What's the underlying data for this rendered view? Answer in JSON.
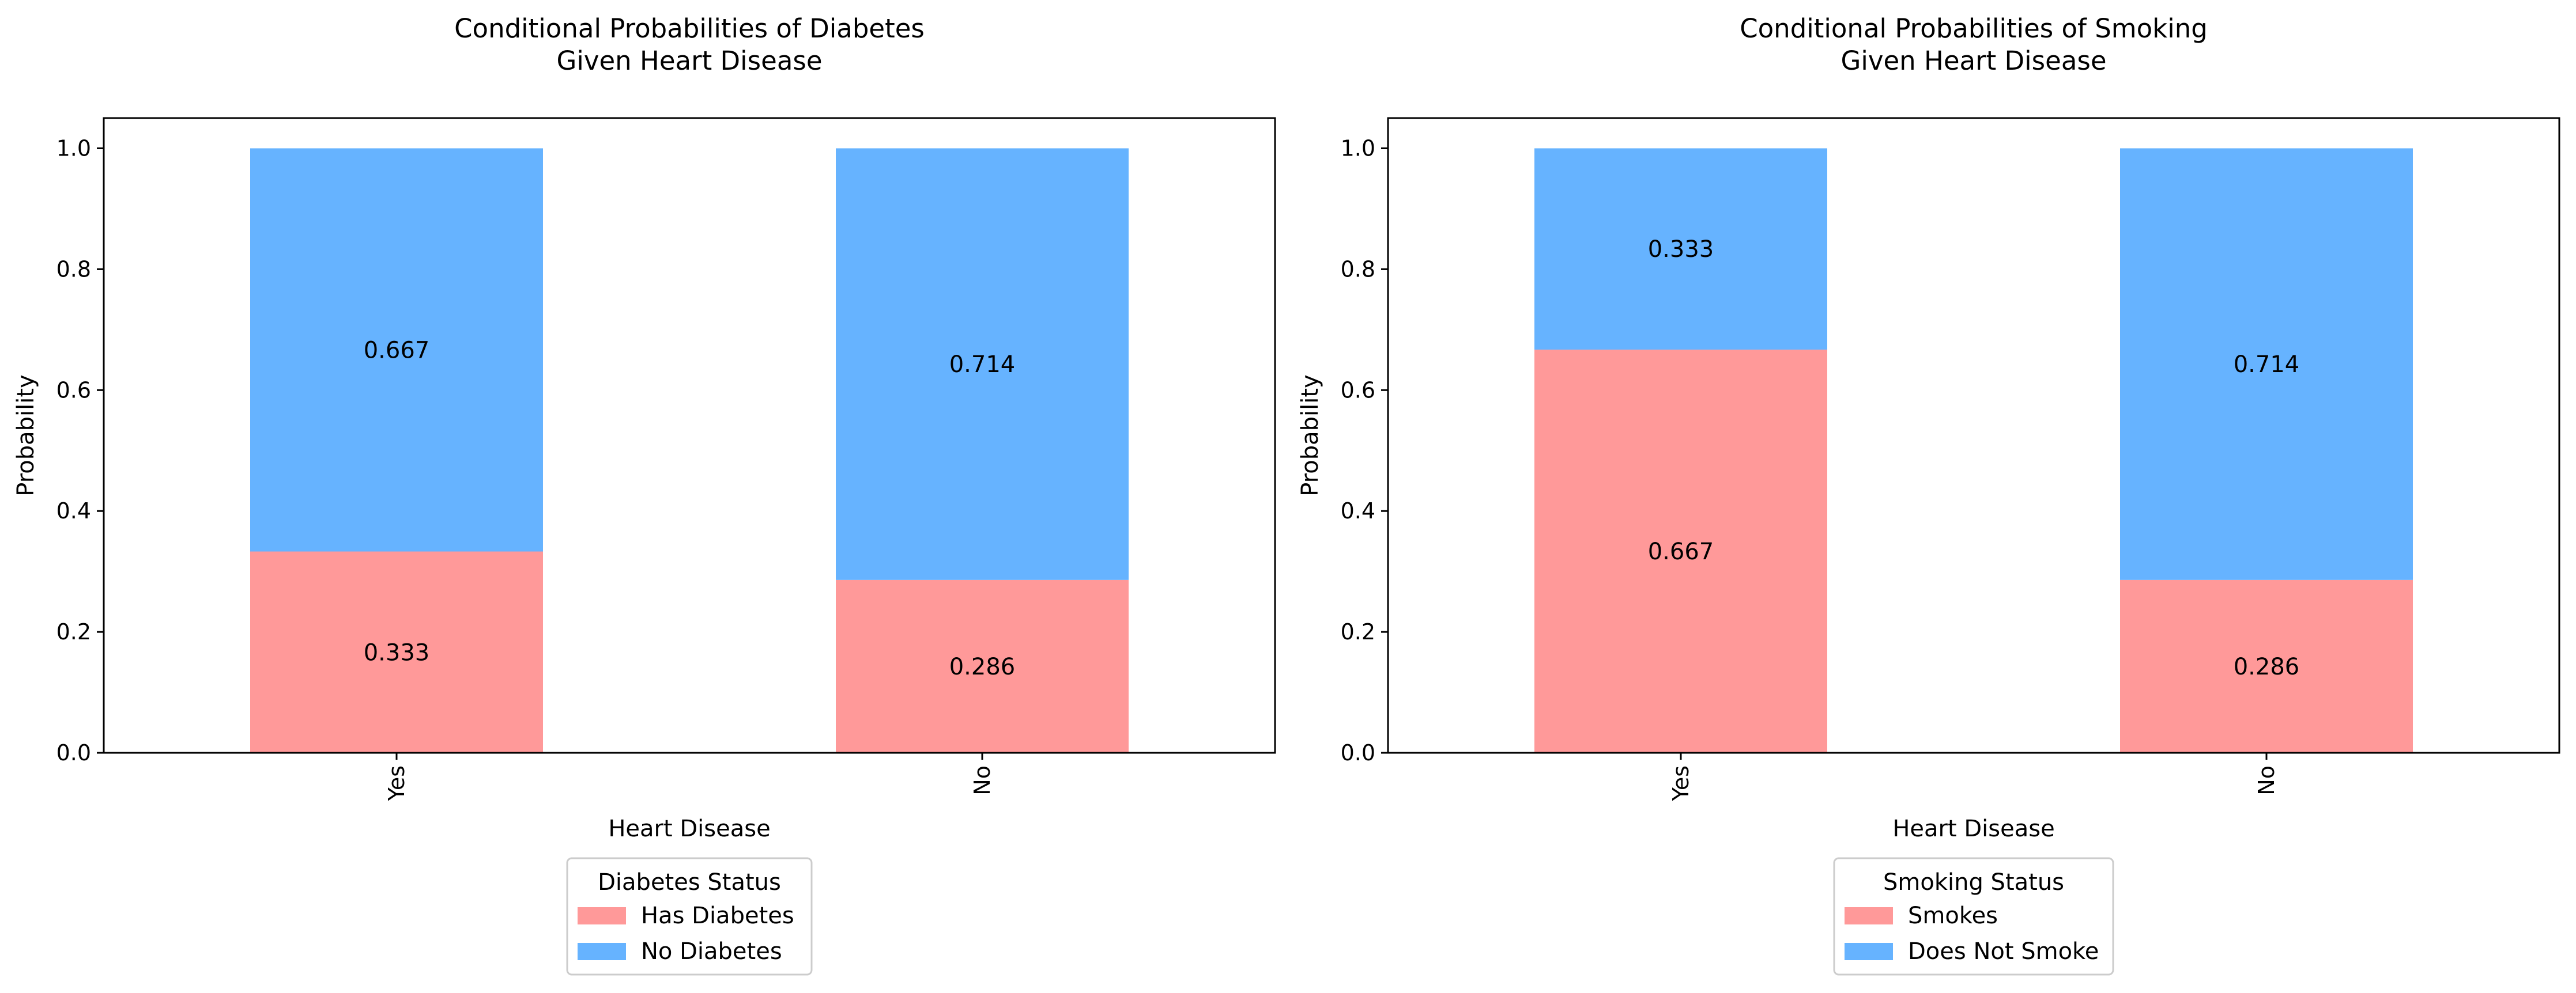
{
  "chart_data": [
    {
      "type": "bar",
      "stacked": true,
      "title": "Conditional Probabilities of Diabetes\nGiven Heart Disease",
      "xlabel": "Heart Disease",
      "ylabel": "Probability",
      "categories": [
        "Yes",
        "No"
      ],
      "ylim": [
        0,
        1.05
      ],
      "yticks": [
        "0.0",
        "0.2",
        "0.4",
        "0.6",
        "0.8",
        "1.0"
      ],
      "grid": false,
      "legend": {
        "title": "Diabetes Status",
        "placement": "bottom-center"
      },
      "series": [
        {
          "name": "Has Diabetes",
          "color": "#ff9999",
          "values": [
            0.333,
            0.286
          ]
        },
        {
          "name": "No Diabetes",
          "color": "#66b3ff",
          "values": [
            0.667,
            0.714
          ]
        }
      ]
    },
    {
      "type": "bar",
      "stacked": true,
      "title": "Conditional Probabilities of Smoking\nGiven Heart Disease",
      "xlabel": "Heart Disease",
      "ylabel": "Probability",
      "categories": [
        "Yes",
        "No"
      ],
      "ylim": [
        0,
        1.05
      ],
      "yticks": [
        "0.0",
        "0.2",
        "0.4",
        "0.6",
        "0.8",
        "1.0"
      ],
      "grid": false,
      "legend": {
        "title": "Smoking Status",
        "placement": "bottom-center"
      },
      "series": [
        {
          "name": "Smokes",
          "color": "#ff9999",
          "values": [
            0.667,
            0.286
          ]
        },
        {
          "name": "Does Not Smoke",
          "color": "#66b3ff",
          "values": [
            0.333,
            0.714
          ]
        }
      ]
    }
  ]
}
